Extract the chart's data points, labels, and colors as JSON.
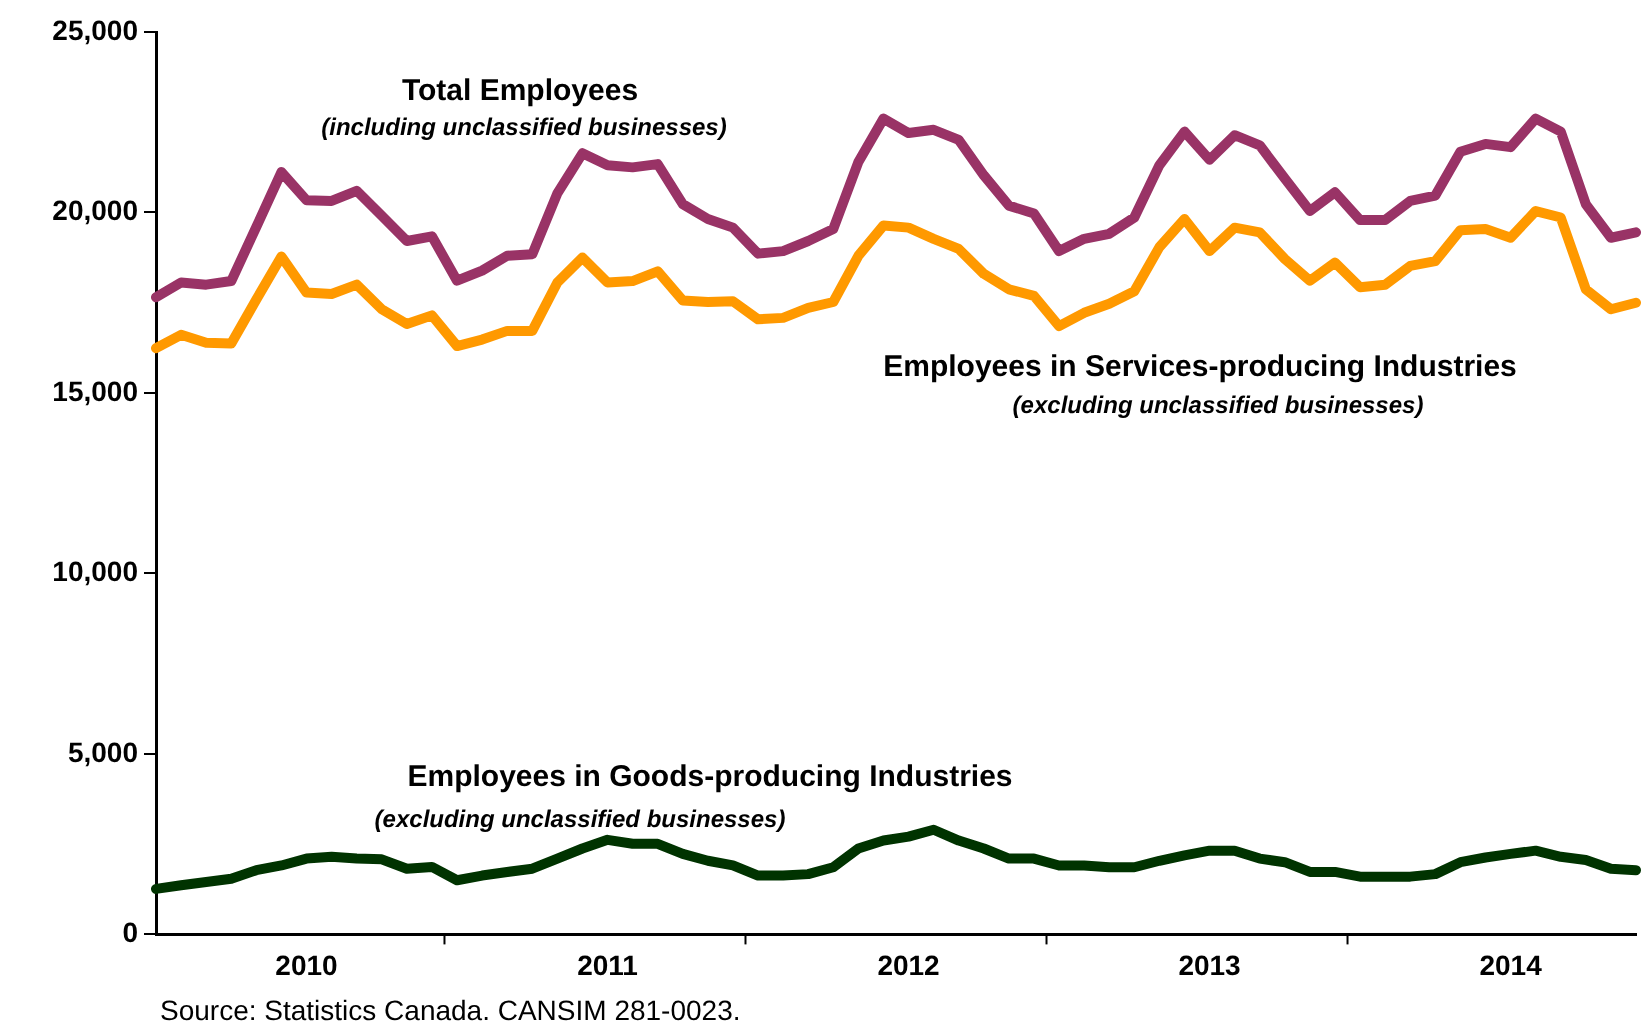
{
  "chart_data": {
    "type": "line",
    "categories": [
      null,
      null,
      null,
      null,
      null,
      null,
      "2010",
      null,
      null,
      null,
      null,
      null,
      null,
      null,
      null,
      null,
      null,
      null,
      "2011",
      null,
      null,
      null,
      null,
      null,
      null,
      null,
      null,
      null,
      null,
      null,
      "2012",
      null,
      null,
      null,
      null,
      null,
      null,
      null,
      null,
      null,
      null,
      null,
      "2013",
      null,
      null,
      null,
      null,
      null,
      null,
      null,
      null,
      null,
      null,
      null,
      "2014",
      null,
      null,
      null,
      null,
      null
    ],
    "series": [
      {
        "name": "Total Employees",
        "color": "#993366",
        "values": [
          17650,
          18060,
          18000,
          18100,
          19600,
          21120,
          20340,
          20320,
          20600,
          19910,
          19210,
          19340,
          18110,
          18390,
          18800,
          18840,
          20530,
          21640,
          21310,
          21250,
          21340,
          20230,
          19820,
          19580,
          18860,
          18930,
          19210,
          19540,
          21400,
          22600,
          22200,
          22290,
          22010,
          21030,
          20190,
          19970,
          18930,
          19270,
          19410,
          19860,
          21310,
          22240,
          21460,
          22140,
          21860,
          20940,
          20040,
          20560,
          19790,
          19790,
          20320,
          20470,
          21680,
          21900,
          21810,
          22600,
          22240,
          20230,
          19300,
          19450
        ]
      },
      {
        "name": "Employees in Services-producing Industries",
        "color": "#ff9900",
        "values": [
          16240,
          16610,
          16390,
          16370,
          17590,
          18780,
          17780,
          17740,
          18000,
          17320,
          16910,
          17150,
          16300,
          16480,
          16720,
          16720,
          18060,
          18750,
          18060,
          18100,
          18370,
          17560,
          17520,
          17540,
          17040,
          17080,
          17360,
          17520,
          18800,
          19640,
          19580,
          19270,
          18990,
          18300,
          17870,
          17690,
          16850,
          17220,
          17470,
          17820,
          19040,
          19820,
          18930,
          19580,
          19450,
          18710,
          18110,
          18610,
          17930,
          18000,
          18520,
          18650,
          19510,
          19540,
          19300,
          20040,
          19860,
          17870,
          17320,
          17500
        ]
      },
      {
        "name": "Employees in Goods-producing Industries",
        "color": "#003300",
        "values": [
          1260,
          1360,
          1450,
          1540,
          1780,
          1910,
          2100,
          2150,
          2100,
          2080,
          1820,
          1870,
          1500,
          1630,
          1730,
          1820,
          2100,
          2380,
          2620,
          2510,
          2510,
          2230,
          2040,
          1910,
          1630,
          1630,
          1670,
          1860,
          2380,
          2600,
          2710,
          2900,
          2600,
          2380,
          2100,
          2100,
          1910,
          1910,
          1860,
          1860,
          2040,
          2190,
          2320,
          2320,
          2100,
          2000,
          1730,
          1730,
          1600,
          1600,
          1600,
          1670,
          2000,
          2130,
          2230,
          2320,
          2150,
          2060,
          1820,
          1780
        ]
      }
    ],
    "ylim": [
      0,
      25000
    ],
    "yticks": [
      {
        "value": 0,
        "label": "0"
      },
      {
        "value": 5000,
        "label": "5,000"
      },
      {
        "value": 10000,
        "label": "10,000"
      },
      {
        "value": 15000,
        "label": "15,000"
      },
      {
        "value": 20000,
        "label": "20,000"
      },
      {
        "value": 25000,
        "label": "25,000"
      }
    ],
    "grid": false,
    "legend": false,
    "marker": "none",
    "line_style": "solid",
    "annotations": [
      "(including unclassified businesses)",
      "(excluding unclassified businesses)",
      "(excluding unclassified businesses)",
      "Source: Statistics Canada. CANSIM 281-0023."
    ]
  }
}
